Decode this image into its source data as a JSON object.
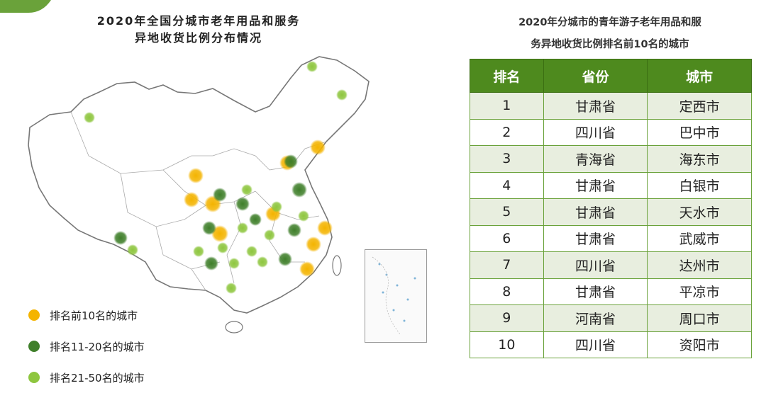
{
  "map": {
    "title_line1": "2020年全国分城市老年用品和服务",
    "title_line2": "异地收货比例分布情况",
    "legend": [
      {
        "label": "排名前10名的城市",
        "color": "#f4b400"
      },
      {
        "label": "排名11-20名的城市",
        "color": "#3f7f2a"
      },
      {
        "label": "排名21-50名的城市",
        "color": "#8ec63f"
      }
    ]
  },
  "table": {
    "title_line1": "2020年分城市的青年游子老年用品和服",
    "title_line2": "务异地收货比例排名前10名的城市",
    "headers": [
      "排名",
      "省份",
      "城市"
    ],
    "rows": [
      [
        "1",
        "甘肃省",
        "定西市"
      ],
      [
        "2",
        "四川省",
        "巴中市"
      ],
      [
        "3",
        "青海省",
        "海东市"
      ],
      [
        "4",
        "甘肃省",
        "白银市"
      ],
      [
        "5",
        "甘肃省",
        "天水市"
      ],
      [
        "6",
        "甘肃省",
        "武威市"
      ],
      [
        "7",
        "四川省",
        "达州市"
      ],
      [
        "8",
        "甘肃省",
        "平凉市"
      ],
      [
        "9",
        "河南省",
        "周口市"
      ],
      [
        "10",
        "四川省",
        "资阳市"
      ]
    ]
  }
}
